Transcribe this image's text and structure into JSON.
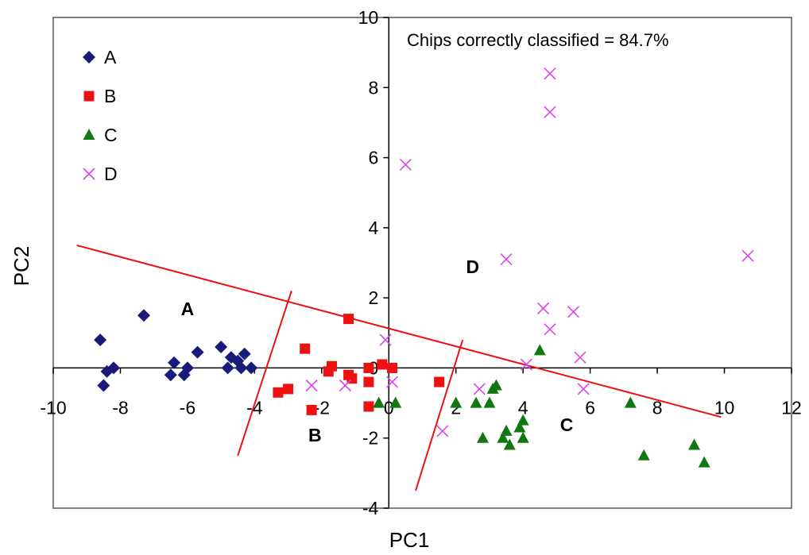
{
  "chart_data": {
    "type": "scatter",
    "annotation": "Chips correctly classified = 84.7%",
    "xlabel": "PC1",
    "ylabel": "PC2",
    "xlim": [
      -10,
      12
    ],
    "ylim": [
      -4,
      10
    ],
    "x_ticks": [
      "-10",
      "-8",
      "-6",
      "-4",
      "-2",
      "0",
      "2",
      "4",
      "6",
      "8",
      "10",
      "12"
    ],
    "y_ticks": [
      "-4",
      "-2",
      "0",
      "2",
      "4",
      "6",
      "8",
      "10"
    ],
    "grid": false,
    "legend_position": "top-left",
    "series": [
      {
        "name": "A",
        "marker": "diamond",
        "color": "#1a1a7a",
        "points": [
          [
            -8.6,
            0.8
          ],
          [
            -8.5,
            -0.5
          ],
          [
            -8.4,
            -0.1
          ],
          [
            -8.2,
            0
          ],
          [
            -7.3,
            1.5
          ],
          [
            -6.5,
            -0.2
          ],
          [
            -6.4,
            0.15
          ],
          [
            -6.1,
            -0.2
          ],
          [
            -6,
            0
          ],
          [
            -5.7,
            0.45
          ],
          [
            -5,
            0.6
          ],
          [
            -4.8,
            0
          ],
          [
            -4.7,
            0.3
          ],
          [
            -4.5,
            0.2
          ],
          [
            -4.4,
            0
          ],
          [
            -4.3,
            0.4
          ],
          [
            -4.1,
            0
          ]
        ]
      },
      {
        "name": "B",
        "marker": "square",
        "color": "#ee1111",
        "points": [
          [
            -3.3,
            -0.7
          ],
          [
            -3,
            -0.6
          ],
          [
            -2.5,
            0.55
          ],
          [
            -2.3,
            -1.2
          ],
          [
            -1.8,
            -0.1
          ],
          [
            -1.7,
            0.05
          ],
          [
            -1.2,
            1.4
          ],
          [
            -1.2,
            -0.2
          ],
          [
            -1.1,
            -0.3
          ],
          [
            -0.6,
            0
          ],
          [
            -0.6,
            -0.4
          ],
          [
            -0.6,
            -1.1
          ],
          [
            -0.2,
            0.1
          ],
          [
            0.1,
            0
          ],
          [
            1.5,
            -0.4
          ]
        ]
      },
      {
        "name": "C",
        "marker": "triangle",
        "color": "#117711",
        "points": [
          [
            -0.3,
            -1
          ],
          [
            0.2,
            -1
          ],
          [
            2,
            -1
          ],
          [
            2.6,
            -1
          ],
          [
            3,
            -1
          ],
          [
            3.1,
            -0.6
          ],
          [
            3.2,
            -0.5
          ],
          [
            2.8,
            -2
          ],
          [
            3.4,
            -2
          ],
          [
            3.5,
            -1.8
          ],
          [
            3.6,
            -2.2
          ],
          [
            3.9,
            -1.7
          ],
          [
            4,
            -1.5
          ],
          [
            4,
            -2
          ],
          [
            4.5,
            0.5
          ],
          [
            7.2,
            -1
          ],
          [
            7.6,
            -2.5
          ],
          [
            9.1,
            -2.2
          ],
          [
            9.4,
            -2.7
          ]
        ]
      },
      {
        "name": "D",
        "marker": "x",
        "color": "#dd44ee",
        "points": [
          [
            0.5,
            5.8
          ],
          [
            4.8,
            8.4
          ],
          [
            4.8,
            7.3
          ],
          [
            3.5,
            3.1
          ],
          [
            10.7,
            3.2
          ],
          [
            4.6,
            1.7
          ],
          [
            4.8,
            1.1
          ],
          [
            5.5,
            1.6
          ],
          [
            5.7,
            0.3
          ],
          [
            5.8,
            -0.6
          ],
          [
            4.1,
            0.1
          ],
          [
            -2.3,
            -0.5
          ],
          [
            -1.3,
            -0.5
          ],
          [
            -0.1,
            0.8
          ],
          [
            0.1,
            -0.4
          ],
          [
            2.7,
            -0.6
          ],
          [
            1.6,
            -1.8
          ]
        ]
      }
    ],
    "boundary_lines": [
      {
        "from": [
          -9.3,
          3.5
        ],
        "to": [
          9.9,
          -1.4
        ]
      },
      {
        "from": [
          -2.9,
          2.2
        ],
        "to": [
          -4.5,
          -2.5
        ]
      },
      {
        "from": [
          2.2,
          0.8
        ],
        "to": [
          0.8,
          -3.5
        ]
      }
    ],
    "boundary_color": "#ee1111",
    "region_labels": [
      {
        "text": "A",
        "x": -6,
        "y": 1.5
      },
      {
        "text": "B",
        "x": -2.2,
        "y": -2.1
      },
      {
        "text": "C",
        "x": 5.3,
        "y": -1.8
      },
      {
        "text": "D",
        "x": 2.5,
        "y": 2.7
      }
    ]
  }
}
